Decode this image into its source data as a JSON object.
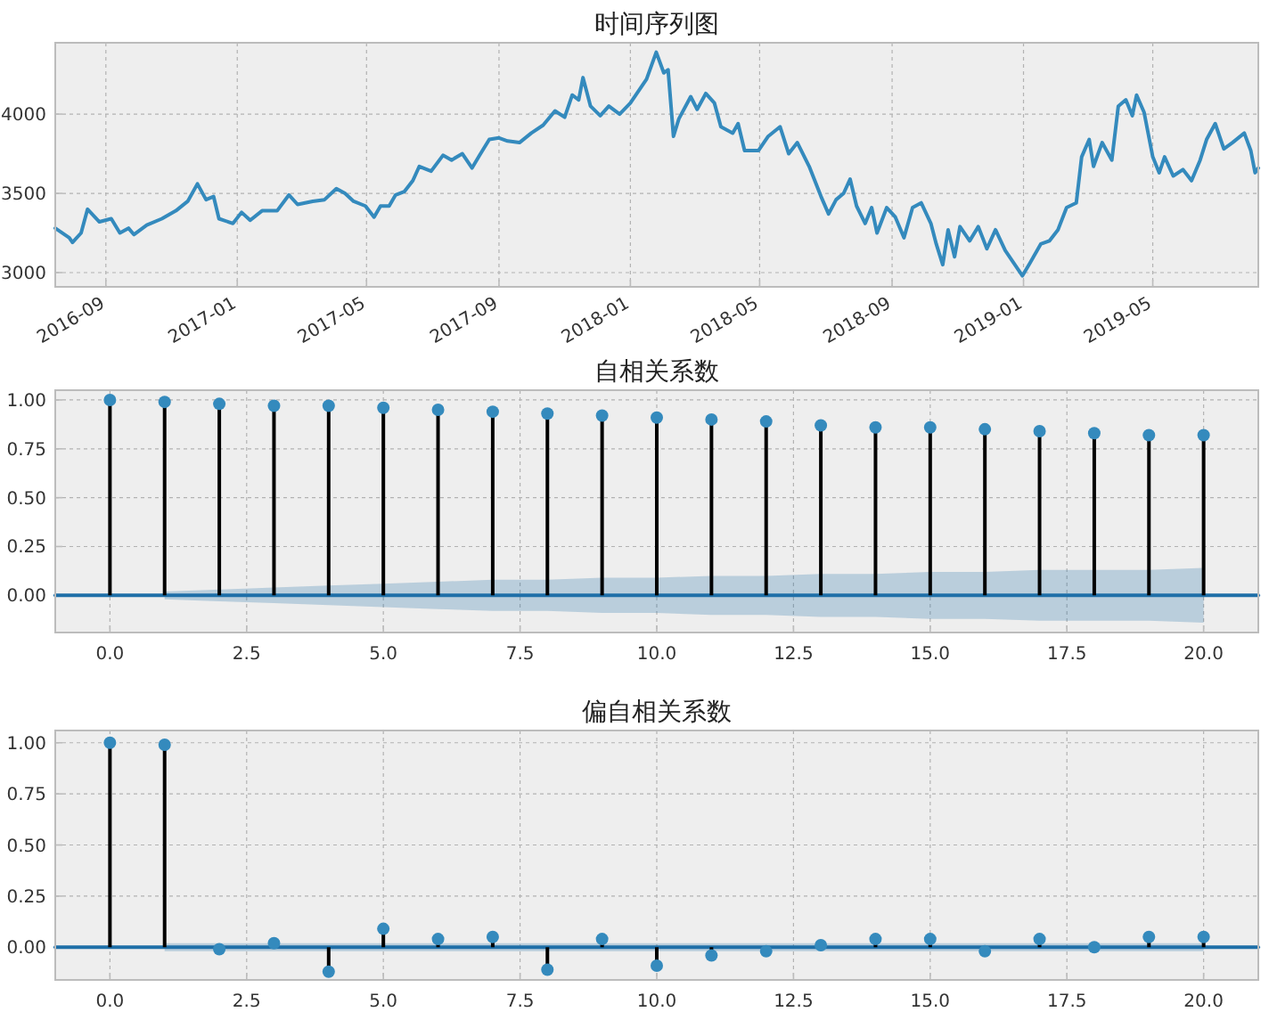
{
  "chart_data": [
    {
      "type": "line",
      "title": "时间序列图",
      "color": "#348abd",
      "grid": true,
      "x": [
        "2016-07-16",
        "2016-07-29",
        "2016-08-01",
        "2016-08-09",
        "2016-08-15",
        "2016-08-26",
        "2016-09-06",
        "2016-09-14",
        "2016-09-22",
        "2016-09-27",
        "2016-10-09",
        "2016-10-23",
        "2016-11-05",
        "2016-11-16",
        "2016-11-25",
        "2016-12-03",
        "2016-12-10",
        "2016-12-15",
        "2016-12-28",
        "2017-01-05",
        "2017-01-13",
        "2017-01-24",
        "2017-02-07",
        "2017-02-18",
        "2017-02-26",
        "2017-03-12",
        "2017-03-23",
        "2017-04-03",
        "2017-04-11",
        "2017-04-19",
        "2017-04-30",
        "2017-05-08",
        "2017-05-14",
        "2017-05-22",
        "2017-05-28",
        "2017-06-05",
        "2017-06-13",
        "2017-06-19",
        "2017-06-30",
        "2017-07-11",
        "2017-07-19",
        "2017-07-29",
        "2017-08-07",
        "2017-08-14",
        "2017-08-23",
        "2017-09-01",
        "2017-09-09",
        "2017-09-20",
        "2017-10-01",
        "2017-10-12",
        "2017-10-23",
        "2017-11-01",
        "2017-11-08",
        "2017-11-14",
        "2017-11-18",
        "2017-11-25",
        "2017-12-04",
        "2017-12-12",
        "2017-12-22",
        "2018-01-01",
        "2018-01-08",
        "2018-01-16",
        "2018-01-25",
        "2018-02-01",
        "2018-02-05",
        "2018-02-10",
        "2018-02-15",
        "2018-02-26",
        "2018-03-04",
        "2018-03-12",
        "2018-03-20",
        "2018-03-26",
        "2018-04-06",
        "2018-04-11",
        "2018-04-17",
        "2018-04-30",
        "2018-05-09",
        "2018-05-20",
        "2018-05-28",
        "2018-06-05",
        "2018-06-16",
        "2018-06-27",
        "2018-07-04",
        "2018-07-11",
        "2018-07-18",
        "2018-07-24",
        "2018-07-30",
        "2018-08-07",
        "2018-08-13",
        "2018-08-18",
        "2018-08-27",
        "2018-09-04",
        "2018-09-12",
        "2018-09-20",
        "2018-09-28",
        "2018-10-07",
        "2018-10-12",
        "2018-10-18",
        "2018-10-23",
        "2018-10-29",
        "2018-11-03",
        "2018-11-12",
        "2018-11-20",
        "2018-11-28",
        "2018-12-06",
        "2018-12-15",
        "2018-12-23",
        "2018-12-31",
        "2019-01-07",
        "2019-01-17",
        "2019-01-25",
        "2019-02-02",
        "2019-02-10",
        "2019-02-19",
        "2019-02-24",
        "2019-03-03",
        "2019-03-07",
        "2019-03-15",
        "2019-03-24",
        "2019-03-30",
        "2019-04-06",
        "2019-04-12",
        "2019-04-16",
        "2019-04-23",
        "2019-05-01",
        "2019-05-07",
        "2019-05-12",
        "2019-05-20",
        "2019-05-29",
        "2019-06-06",
        "2019-06-14",
        "2019-06-20",
        "2019-06-28",
        "2019-07-06",
        "2019-07-14",
        "2019-07-25",
        "2019-07-31",
        "2019-08-04",
        "2019-08-07"
      ],
      "values": [
        3280,
        3220,
        3190,
        3250,
        3400,
        3320,
        3340,
        3250,
        3280,
        3240,
        3300,
        3340,
        3390,
        3450,
        3560,
        3460,
        3480,
        3340,
        3310,
        3380,
        3330,
        3390,
        3390,
        3490,
        3430,
        3450,
        3460,
        3530,
        3500,
        3450,
        3420,
        3350,
        3420,
        3420,
        3490,
        3510,
        3580,
        3670,
        3640,
        3740,
        3710,
        3750,
        3660,
        3740,
        3840,
        3850,
        3830,
        3820,
        3880,
        3930,
        4020,
        3980,
        4120,
        4090,
        4230,
        4050,
        3990,
        4050,
        4000,
        4070,
        4140,
        4220,
        4390,
        4260,
        4280,
        3860,
        3970,
        4110,
        4030,
        4130,
        4070,
        3920,
        3880,
        3940,
        3770,
        3770,
        3860,
        3920,
        3750,
        3820,
        3670,
        3480,
        3370,
        3460,
        3500,
        3590,
        3420,
        3310,
        3410,
        3250,
        3410,
        3350,
        3220,
        3410,
        3440,
        3310,
        3180,
        3050,
        3270,
        3100,
        3290,
        3200,
        3290,
        3150,
        3270,
        3140,
        3060,
        2980,
        3060,
        3180,
        3200,
        3270,
        3410,
        3440,
        3730,
        3840,
        3670,
        3820,
        3710,
        4050,
        4090,
        3990,
        4120,
        4010,
        3730,
        3630,
        3730,
        3610,
        3650,
        3580,
        3710,
        3840,
        3940,
        3780,
        3820,
        3880,
        3770,
        3630,
        3660
      ],
      "xlim": [
        "2016-07-16",
        "2019-08-07"
      ],
      "ylim": [
        2910,
        4450
      ],
      "xticks": [
        "2016-09",
        "2017-01",
        "2017-05",
        "2017-09",
        "2018-01",
        "2018-05",
        "2018-09",
        "2019-01",
        "2019-05"
      ],
      "yticks": [
        3000,
        3500,
        4000
      ]
    },
    {
      "type": "lollipop",
      "title": "自相关系数",
      "grid": true,
      "series": [
        {
          "marker": "circle",
          "color": "#348abd",
          "x": [
            0,
            1,
            2,
            3,
            4,
            5,
            6,
            7,
            8,
            9,
            10,
            11,
            12,
            13,
            14,
            15,
            16,
            17,
            18,
            19,
            20
          ],
          "values": [
            1.0,
            0.99,
            0.98,
            0.97,
            0.97,
            0.96,
            0.95,
            0.94,
            0.93,
            0.92,
            0.91,
            0.9,
            0.89,
            0.87,
            0.86,
            0.86,
            0.85,
            0.84,
            0.83,
            0.82,
            0.82
          ]
        },
        {
          "type": "line",
          "color": "#1f6fa8",
          "x": [
            -1,
            0,
            1,
            2,
            3,
            4,
            5,
            6,
            7,
            8,
            9,
            10,
            11,
            12,
            13,
            14,
            15,
            16,
            17,
            18,
            19,
            20,
            21
          ],
          "values": [
            0,
            0,
            0,
            0,
            0,
            0,
            0,
            0,
            0,
            0,
            0,
            0,
            0,
            0,
            0,
            0,
            0,
            0,
            0,
            0,
            0,
            0,
            0
          ],
          "lower": [
            null,
            null,
            -0.02,
            -0.03,
            -0.04,
            -0.05,
            -0.06,
            -0.07,
            -0.08,
            -0.08,
            -0.09,
            -0.09,
            -0.1,
            -0.1,
            -0.11,
            -0.11,
            -0.12,
            -0.12,
            -0.13,
            -0.13,
            -0.13,
            -0.14,
            null
          ],
          "upper": [
            null,
            null,
            0.02,
            0.03,
            0.04,
            0.05,
            0.06,
            0.07,
            0.08,
            0.08,
            0.09,
            0.09,
            0.1,
            0.1,
            0.11,
            0.11,
            0.12,
            0.12,
            0.13,
            0.13,
            0.13,
            0.14,
            null
          ]
        }
      ],
      "xlim": [
        -1,
        21
      ],
      "ylim": [
        -0.19,
        1.05
      ],
      "xticks": [
        {
          "value": 0,
          "label": "0.0"
        },
        {
          "value": 2.5,
          "label": "2.5"
        },
        {
          "value": 5,
          "label": "5.0"
        },
        {
          "value": 7.5,
          "label": "7.5"
        },
        {
          "value": 10,
          "label": "10.0"
        },
        {
          "value": 12.5,
          "label": "12.5"
        },
        {
          "value": 15,
          "label": "15.0"
        },
        {
          "value": 17.5,
          "label": "17.5"
        },
        {
          "value": 20,
          "label": "20.0"
        }
      ],
      "yticks": [
        {
          "value": 0,
          "label": "0.00"
        },
        {
          "value": 0.25,
          "label": "0.25"
        },
        {
          "value": 0.5,
          "label": "0.50"
        },
        {
          "value": 0.75,
          "label": "0.75"
        },
        {
          "value": 1,
          "label": "1.00"
        }
      ]
    },
    {
      "type": "lollipop",
      "title": "偏自相关系数",
      "grid": true,
      "series": [
        {
          "marker": "circle",
          "color": "#348abd",
          "x": [
            0,
            1,
            2,
            3,
            4,
            5,
            6,
            7,
            8,
            9,
            10,
            11,
            12,
            13,
            14,
            15,
            16,
            17,
            18,
            19,
            20
          ],
          "values": [
            1.0,
            0.99,
            -0.01,
            0.02,
            -0.12,
            0.09,
            0.04,
            0.05,
            -0.11,
            0.04,
            -0.09,
            -0.04,
            -0.02,
            0.01,
            0.04,
            0.04,
            -0.02,
            0.04,
            0.0,
            0.05,
            0.05
          ]
        },
        {
          "type": "line",
          "color": "#1f6fa8",
          "x": [
            -1,
            1,
            20,
            21
          ],
          "values": [
            0,
            0,
            0,
            0
          ],
          "lower": [
            null,
            -0.02,
            -0.02,
            null
          ],
          "upper": [
            null,
            0.02,
            0.02,
            null
          ]
        }
      ],
      "xlim": [
        -1,
        21
      ],
      "ylim": [
        -0.16,
        1.06
      ],
      "xticks": [
        {
          "value": 0,
          "label": "0.0"
        },
        {
          "value": 2.5,
          "label": "2.5"
        },
        {
          "value": 5,
          "label": "5.0"
        },
        {
          "value": 7.5,
          "label": "7.5"
        },
        {
          "value": 10,
          "label": "10.0"
        },
        {
          "value": 12.5,
          "label": "12.5"
        },
        {
          "value": 15,
          "label": "15.0"
        },
        {
          "value": 17.5,
          "label": "17.5"
        },
        {
          "value": 20,
          "label": "20.0"
        }
      ],
      "yticks": [
        {
          "value": 0,
          "label": "0.00"
        },
        {
          "value": 0.25,
          "label": "0.25"
        },
        {
          "value": 0.5,
          "label": "0.50"
        },
        {
          "value": 0.75,
          "label": "0.75"
        },
        {
          "value": 1,
          "label": "1.00"
        }
      ]
    }
  ]
}
